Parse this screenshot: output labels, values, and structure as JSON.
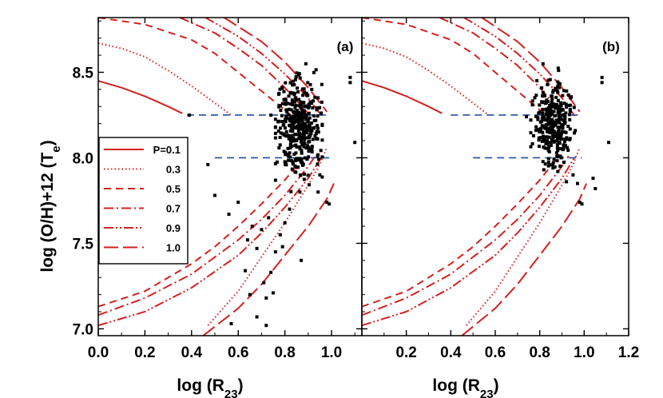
{
  "chart_data": [
    {
      "type": "line",
      "panel": "(a)",
      "xlabel_main": "log (R",
      "xlabel_sub": "23",
      "xlabel_close": ")",
      "ylabel_main": "log (O/H)+12 (T",
      "ylabel_sub": "e",
      "ylabel_close": ")",
      "xlim": [
        0.0,
        1.13
      ],
      "ylim": [
        6.96,
        8.82
      ],
      "xticks": [
        "0.0",
        "0.2",
        "0.4",
        "0.6",
        "0.8",
        "1.0"
      ],
      "xtick_values": [
        0.0,
        0.2,
        0.4,
        0.6,
        0.8,
        1.0
      ],
      "yticks": [
        "7.0",
        "7.5",
        "8.0",
        "8.5"
      ],
      "ytick_values": [
        7.0,
        7.5,
        8.0,
        8.5
      ],
      "legend": {
        "position": "left",
        "entries": [
          {
            "label": "P=0.1",
            "style": "solid"
          },
          {
            "label": "0.3",
            "style": "dotted"
          },
          {
            "label": "0.5",
            "style": "dashed"
          },
          {
            "label": "0.7",
            "style": "dashdot"
          },
          {
            "label": "0.9",
            "style": "dashdotdot"
          },
          {
            "label": "1.0",
            "style": "longdash"
          }
        ]
      },
      "series": [
        {
          "name": "P=0.1 upper",
          "style": "solid",
          "points": [
            [
              0.0,
              8.45
            ],
            [
              0.1,
              8.41
            ],
            [
              0.2,
              8.36
            ],
            [
              0.3,
              8.3
            ],
            [
              0.36,
              8.26
            ]
          ]
        },
        {
          "name": "P=0.3 upper",
          "style": "dotted",
          "points": [
            [
              0.0,
              8.67
            ],
            [
              0.1,
              8.64
            ],
            [
              0.2,
              8.59
            ],
            [
              0.3,
              8.51
            ],
            [
              0.4,
              8.42
            ],
            [
              0.5,
              8.32
            ],
            [
              0.57,
              8.25
            ]
          ]
        },
        {
          "name": "P=0.3 lower",
          "style": "dotted",
          "points": [
            [
              0.47,
              7.02
            ],
            [
              0.6,
              7.22
            ],
            [
              0.7,
              7.42
            ],
            [
              0.8,
              7.62
            ],
            [
              0.9,
              7.84
            ],
            [
              0.95,
              7.96
            ],
            [
              0.98,
              8.06
            ]
          ]
        },
        {
          "name": "P=0.5 upper",
          "style": "dashed",
          "points": [
            [
              0.0,
              8.82
            ],
            [
              0.2,
              8.78
            ],
            [
              0.4,
              8.69
            ],
            [
              0.5,
              8.61
            ],
            [
              0.6,
              8.5
            ],
            [
              0.7,
              8.39
            ],
            [
              0.8,
              8.28
            ],
            [
              0.85,
              8.22
            ]
          ]
        },
        {
          "name": "P=0.5 lower",
          "style": "dashed",
          "points": [
            [
              0.0,
              7.13
            ],
            [
              0.2,
              7.22
            ],
            [
              0.4,
              7.38
            ],
            [
              0.5,
              7.48
            ],
            [
              0.6,
              7.6
            ],
            [
              0.7,
              7.73
            ],
            [
              0.8,
              7.87
            ],
            [
              0.88,
              8.0
            ]
          ]
        },
        {
          "name": "P=0.7 upper",
          "style": "dashdot",
          "points": [
            [
              0.35,
              8.82
            ],
            [
              0.5,
              8.73
            ],
            [
              0.6,
              8.64
            ],
            [
              0.7,
              8.54
            ],
            [
              0.8,
              8.41
            ],
            [
              0.9,
              8.26
            ]
          ]
        },
        {
          "name": "P=0.7 lower",
          "style": "dashdot",
          "points": [
            [
              0.0,
              7.08
            ],
            [
              0.2,
              7.18
            ],
            [
              0.4,
              7.32
            ],
            [
              0.6,
              7.52
            ],
            [
              0.7,
              7.64
            ],
            [
              0.8,
              7.78
            ],
            [
              0.9,
              7.95
            ],
            [
              0.93,
              8.01
            ]
          ]
        },
        {
          "name": "P=0.9 upper",
          "style": "dashdotdot",
          "points": [
            [
              0.46,
              8.82
            ],
            [
              0.6,
              8.71
            ],
            [
              0.7,
              8.61
            ],
            [
              0.8,
              8.49
            ],
            [
              0.9,
              8.35
            ],
            [
              0.96,
              8.24
            ]
          ]
        },
        {
          "name": "P=0.9 lower",
          "style": "dashdotdot",
          "points": [
            [
              0.0,
              7.02
            ],
            [
              0.2,
              7.1
            ],
            [
              0.4,
              7.24
            ],
            [
              0.6,
              7.43
            ],
            [
              0.7,
              7.56
            ],
            [
              0.8,
              7.71
            ],
            [
              0.9,
              7.88
            ],
            [
              0.96,
              8.01
            ]
          ]
        },
        {
          "name": "P=1.0 upper",
          "style": "longdash",
          "points": [
            [
              0.54,
              8.82
            ],
            [
              0.7,
              8.68
            ],
            [
              0.8,
              8.56
            ],
            [
              0.9,
              8.41
            ],
            [
              0.98,
              8.27
            ]
          ]
        },
        {
          "name": "P=1.0 lower",
          "style": "longdash",
          "points": [
            [
              0.45,
              6.96
            ],
            [
              0.6,
              7.12
            ],
            [
              0.7,
              7.26
            ],
            [
              0.8,
              7.43
            ],
            [
              0.9,
              7.6
            ],
            [
              0.98,
              7.76
            ],
            [
              1.01,
              7.85
            ]
          ]
        }
      ],
      "reference_lines": [
        {
          "y": 8.25,
          "x_range": [
            0.38,
            0.98
          ],
          "style": "dashed",
          "color": "#1f4fa0"
        },
        {
          "y": 8.0,
          "x_range": [
            0.5,
            0.99
          ],
          "style": "dashed",
          "color": "#1f4fa0"
        }
      ],
      "scatter": {
        "color": "#000000",
        "center": [
          0.86,
          8.18
        ],
        "sd": [
          0.045,
          0.14
        ],
        "x_range": [
          0.76,
          0.96
        ],
        "y_range": [
          7.8,
          8.55
        ],
        "n_cloud": 380,
        "outliers": [
          [
            1.08,
            8.47
          ],
          [
            1.08,
            8.44
          ],
          [
            1.1,
            8.09
          ],
          [
            0.99,
            7.73
          ],
          [
            0.98,
            7.74
          ],
          [
            0.57,
            7.03
          ],
          [
            0.68,
            7.07
          ],
          [
            0.65,
            7.2
          ],
          [
            0.63,
            7.34
          ],
          [
            0.72,
            7.18
          ],
          [
            0.75,
            7.21
          ],
          [
            0.71,
            7.27
          ],
          [
            0.74,
            7.33
          ],
          [
            0.8,
            7.62
          ],
          [
            0.47,
            7.96
          ],
          [
            0.5,
            7.78
          ],
          [
            0.56,
            7.67
          ],
          [
            0.6,
            7.74
          ],
          [
            0.66,
            7.6
          ],
          [
            0.64,
            7.52
          ],
          [
            0.68,
            7.47
          ],
          [
            0.79,
            7.48
          ],
          [
            0.78,
            7.55
          ],
          [
            0.73,
            7.65
          ],
          [
            0.82,
            7.7
          ],
          [
            0.76,
            7.45
          ],
          [
            0.7,
            7.58
          ],
          [
            0.72,
            7.02
          ],
          [
            0.87,
            7.4
          ],
          [
            0.39,
            8.25
          ],
          [
            0.74,
            8.25
          ],
          [
            0.95,
            7.9
          ]
        ]
      },
      "panel_position": "top-right"
    },
    {
      "type": "line",
      "panel": "(b)",
      "xlabel_main": "log (R",
      "xlabel_sub": "23",
      "xlabel_close": ")",
      "xlim": [
        0.0,
        1.2
      ],
      "ylim": [
        6.96,
        8.82
      ],
      "xticks": [
        "0.2",
        "0.4",
        "0.6",
        "0.8",
        "1.0",
        "1.2"
      ],
      "xtick_values": [
        0.2,
        0.4,
        0.6,
        0.8,
        1.0,
        1.2
      ],
      "series_same_as": "(a)",
      "reference_lines": [
        {
          "y": 8.25,
          "x_range": [
            0.4,
            0.98
          ],
          "style": "dashed",
          "color": "#1f4fa0"
        },
        {
          "y": 8.0,
          "x_range": [
            0.5,
            0.99
          ],
          "style": "dashed",
          "color": "#1f4fa0"
        }
      ],
      "scatter": {
        "color": "#000000",
        "center": [
          0.86,
          8.2
        ],
        "sd": [
          0.04,
          0.12
        ],
        "x_range": [
          0.76,
          0.96
        ],
        "y_range": [
          7.85,
          8.55
        ],
        "n_cloud": 330,
        "outliers": [
          [
            1.08,
            8.47
          ],
          [
            1.08,
            8.44
          ],
          [
            1.11,
            8.09
          ],
          [
            0.99,
            7.73
          ],
          [
            0.98,
            7.74
          ],
          [
            1.04,
            7.88
          ],
          [
            1.05,
            7.82
          ],
          [
            0.95,
            7.9
          ],
          [
            0.97,
            7.85
          ],
          [
            0.92,
            7.86
          ],
          [
            0.74,
            8.24
          ]
        ]
      },
      "panel_position": "top-right"
    }
  ],
  "colors": {
    "curve": "#d42020",
    "reference": "#1f4fa0",
    "points": "#000000",
    "axes": "#000000"
  }
}
